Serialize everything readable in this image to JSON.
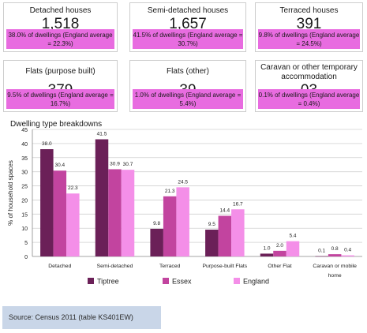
{
  "cards": [
    {
      "title": "Detached houses",
      "value": "1,518",
      "pct": "38.0% of dwellings (England average = 22.3%)"
    },
    {
      "title": "Semi-detached houses",
      "value": "1,657",
      "pct": "41.5% of dwellings (England average = 30.7%)"
    },
    {
      "title": "Terraced houses",
      "value": "391",
      "pct": "9.8% of dwellings (England average = 24.5%)"
    },
    {
      "title": "Flats (purpose built)",
      "value": "379",
      "pct": "9.5% of dwellings (England average = 16.7%)"
    },
    {
      "title": "Flats (other)",
      "value": "39",
      "pct": "1.0% of dwellings (England average = 5.4%)"
    },
    {
      "title": "Caravan or other temporary accommodation",
      "value": "03",
      "pct": "0.1% of dwellings (England average = 0.4%)"
    }
  ],
  "source": "Source: Census 2011 (table KS401EW)",
  "chart_data": {
    "type": "bar",
    "title": "Dwelling type breakdowns",
    "ylabel": "% of household spaces",
    "xlabel": "",
    "ylim": [
      0,
      45
    ],
    "yticks": [
      0,
      5,
      10,
      15,
      20,
      25,
      30,
      35,
      40,
      45
    ],
    "categories": [
      "Detached",
      "Semi-detached",
      "Terraced",
      "Purpose-built Flats",
      "Other Flat",
      "Caravan or mobile home"
    ],
    "series": [
      {
        "name": "Tiptree",
        "color": "#6b2058",
        "values": [
          38.0,
          41.5,
          9.8,
          9.5,
          1.0,
          0.1
        ]
      },
      {
        "name": "Essex",
        "color": "#c2449f",
        "values": [
          30.4,
          30.9,
          21.3,
          14.4,
          2.0,
          0.8
        ]
      },
      {
        "name": "England",
        "color": "#f48fe8",
        "values": [
          22.3,
          30.7,
          24.5,
          16.7,
          5.4,
          0.4
        ]
      }
    ],
    "legend_position": "bottom",
    "grid": true
  }
}
